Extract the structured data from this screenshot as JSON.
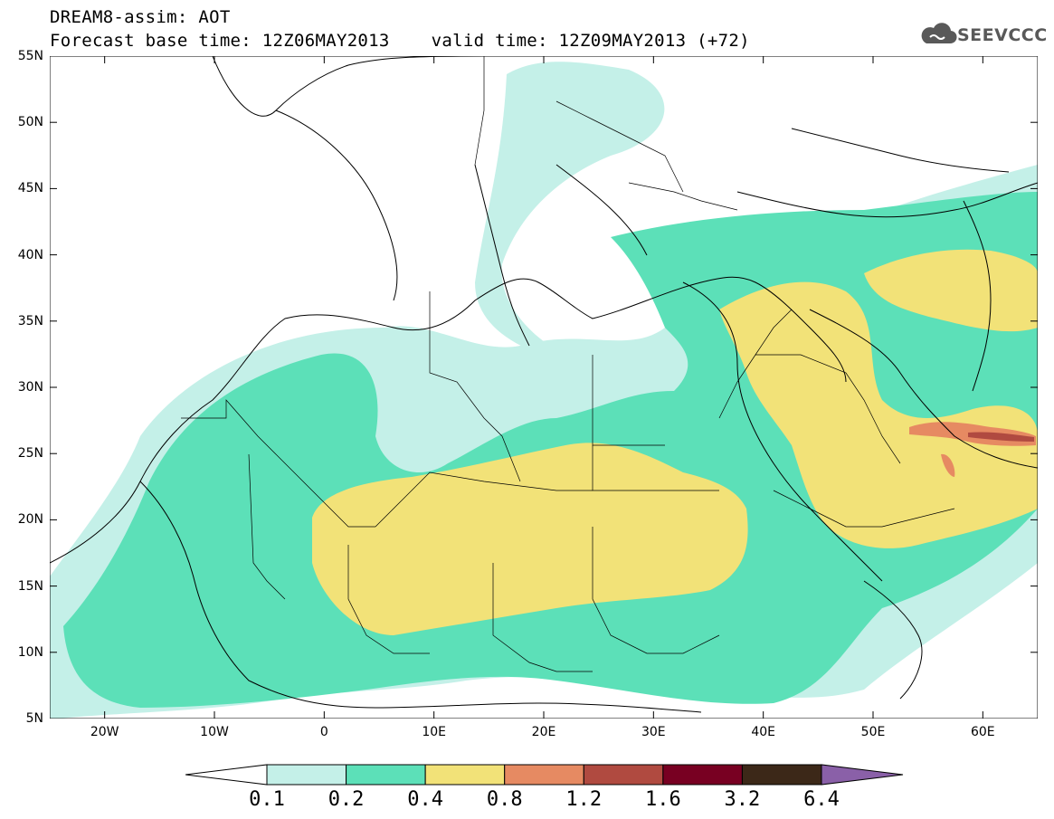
{
  "header": {
    "title": "DREAM8-assim: AOT",
    "base_time": "Forecast base time: 12Z06MAY2013",
    "valid_time": "valid time: 12Z09MAY2013 (+72)",
    "logo_text": "SEEVCCC",
    "logo_icon": "cloud-icon"
  },
  "map": {
    "projection": "lat-lon",
    "lon_range": [
      -25,
      65
    ],
    "lat_range": [
      5,
      55
    ],
    "y_ticks": [
      "55N",
      "50N",
      "45N",
      "40N",
      "35N",
      "30N",
      "25N",
      "20N",
      "15N",
      "10N",
      "5N"
    ],
    "x_ticks": [
      "20W",
      "10W",
      "0",
      "10E",
      "20E",
      "30E",
      "40E",
      "50E",
      "60E"
    ]
  },
  "colorbar": {
    "levels": [
      "0.1",
      "0.2",
      "0.4",
      "0.8",
      "1.2",
      "1.6",
      "3.2",
      "6.4"
    ],
    "colors": {
      "lt01": "#ffffff",
      "c1": "#c4f0e8",
      "c2": "#5ce0b8",
      "c3": "#f2e278",
      "c4": "#e68a62",
      "c5": "#b04a40",
      "c6": "#780022",
      "c7": "#3c2818",
      "c8": "#8a60a8"
    }
  }
}
